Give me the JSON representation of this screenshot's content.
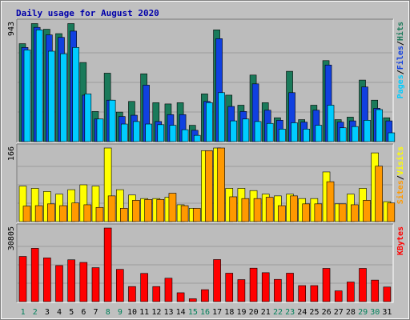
{
  "chart_data": {
    "type": "bar",
    "title": "Daily usage for August 2020",
    "categories": [
      "1",
      "2",
      "3",
      "4",
      "5",
      "6",
      "7",
      "8",
      "9",
      "10",
      "11",
      "12",
      "13",
      "14",
      "15",
      "16",
      "17",
      "18",
      "19",
      "20",
      "21",
      "22",
      "23",
      "24",
      "25",
      "26",
      "27",
      "28",
      "29",
      "30",
      "31"
    ],
    "weekend_days": [
      "1",
      "2",
      "8",
      "9",
      "15",
      "16",
      "22",
      "23",
      "29",
      "30"
    ],
    "panels": [
      {
        "id": "hits-files-pages",
        "max_label": "943",
        "ymax": 943,
        "legend": [
          "Pages",
          "/",
          "Files",
          "/",
          "Hits"
        ],
        "series": [
          {
            "name": "Hits",
            "color": "#1a7a5a",
            "values": [
              780,
              940,
              895,
              860,
              940,
              630,
              240,
              545,
              235,
              320,
              540,
              310,
              300,
              310,
              130,
              380,
              890,
              370,
              290,
              530,
              310,
              190,
              560,
              175,
              290,
              645,
              175,
              195,
              490,
              330,
              190
            ]
          },
          {
            "name": "Files",
            "color": "#1040e0",
            "values": [
              750,
              910,
              850,
              830,
              880,
              370,
              180,
              330,
              200,
              210,
              450,
              160,
              215,
              215,
              90,
              320,
              820,
              280,
              240,
              460,
              250,
              170,
              390,
              155,
              250,
              610,
              155,
              165,
              435,
              265,
              165
            ]
          },
          {
            "name": "Pages",
            "color": "#00ccff",
            "values": [
              730,
              890,
              720,
              700,
              750,
              380,
              180,
              330,
              140,
              160,
              140,
              135,
              130,
              95,
              50,
              310,
              390,
              165,
              180,
              160,
              145,
              100,
              150,
              100,
              130,
              290,
              110,
              120,
              170,
              255,
              70
            ]
          }
        ]
      },
      {
        "id": "visits-sites",
        "max_label": "166",
        "ymax": 166,
        "legend": [
          "Sites",
          "/",
          "Visits"
        ],
        "series": [
          {
            "name": "Visits",
            "color": "#ffff00",
            "values": [
              80,
              75,
              68,
              62,
              72,
              83,
              80,
              166,
              72,
              60,
              52,
              52,
              55,
              38,
              30,
              160,
              166,
              75,
              75,
              70,
              62,
              58,
              62,
              52,
              52,
              112,
              40,
              62,
              75,
              155,
              45
            ]
          },
          {
            "name": "Sites",
            "color": "#ff9900",
            "values": [
              35,
              36,
              40,
              36,
              42,
              38,
              32,
              58,
              30,
              48,
              50,
              50,
              64,
              36,
              30,
              160,
              166,
              56,
              52,
              52,
              55,
              36,
              58,
              40,
              40,
              90,
              40,
              38,
              48,
              125,
              42
            ]
          }
        ]
      },
      {
        "id": "kbytes",
        "max_label": "30805",
        "ymax": 30805,
        "legend": [
          "KBytes"
        ],
        "series": [
          {
            "name": "KBytes",
            "color": "#ff0000",
            "values": [
              18900,
              22300,
              18300,
              15100,
              17500,
              16400,
              14200,
              30800,
              13500,
              6300,
              11800,
              6300,
              9800,
              3700,
              1200,
              5000,
              17600,
              11900,
              9200,
              14000,
              12100,
              9300,
              11900,
              6700,
              6700,
              13900,
              4500,
              8200,
              13900,
              9000,
              6100
            ]
          }
        ]
      }
    ]
  }
}
